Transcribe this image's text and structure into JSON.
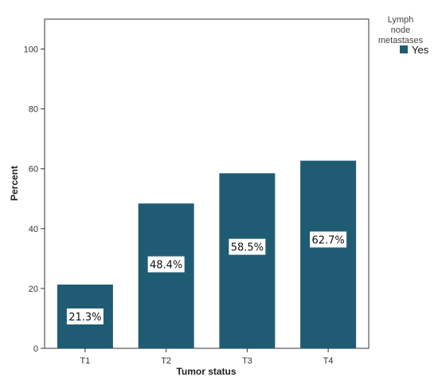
{
  "chart_data": {
    "type": "bar",
    "categories": [
      "T1",
      "T2",
      "T3",
      "T4"
    ],
    "series": [
      {
        "name": "Yes",
        "values": [
          21.3,
          48.4,
          58.5,
          62.7
        ],
        "labels": [
          "21.3%",
          "48.4%",
          "58.5%",
          "62.7%"
        ]
      }
    ],
    "xlabel": "Tumor status",
    "ylabel": "Percent",
    "ylim": [
      0,
      110
    ],
    "yticks": [
      0,
      20,
      40,
      60,
      80,
      100
    ],
    "legend": {
      "title_lines": [
        "Lymph",
        "node",
        "metastases"
      ],
      "entries": [
        "Yes"
      ],
      "placement": "top-right-outside"
    },
    "grid": false,
    "colors": {
      "bar": "#1f5c73",
      "axis": "#333333",
      "label_box": "#ffffff"
    }
  }
}
